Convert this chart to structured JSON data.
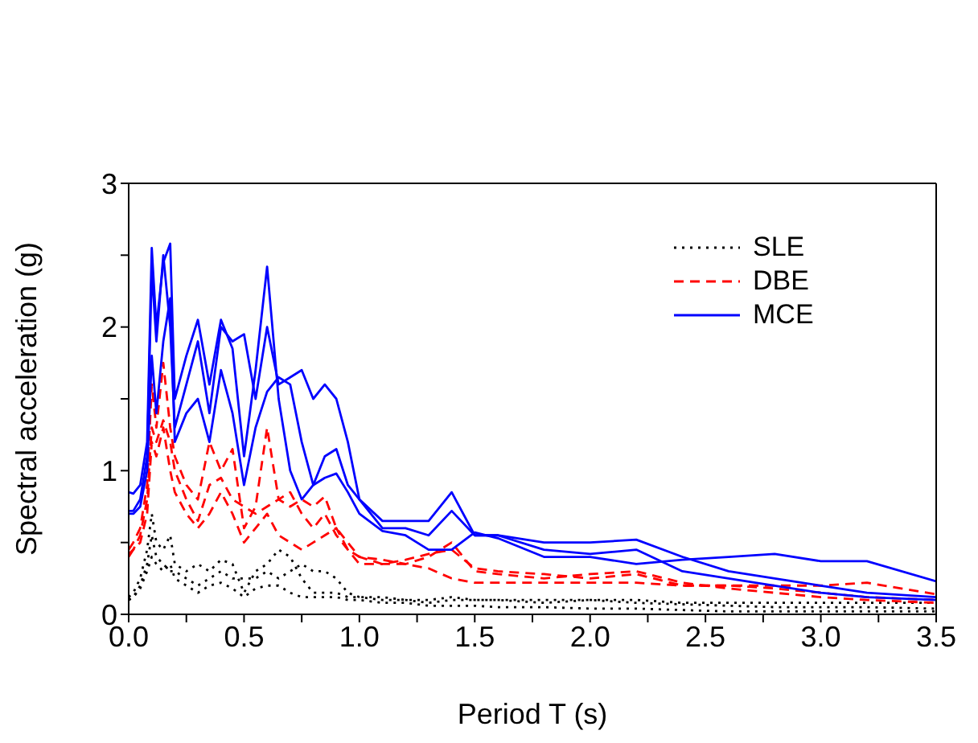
{
  "chart_data": {
    "type": "line",
    "xlabel": "Period T (s)",
    "ylabel": "Spectral acceleration (g)",
    "x": [
      0,
      0.02,
      0.05,
      0.08,
      0.1,
      0.12,
      0.15,
      0.18,
      0.2,
      0.25,
      0.3,
      0.35,
      0.4,
      0.45,
      0.5,
      0.55,
      0.6,
      0.65,
      0.7,
      0.75,
      0.8,
      0.85,
      0.9,
      0.95,
      1.0,
      1.1,
      1.2,
      1.3,
      1.4,
      1.5,
      1.6,
      1.8,
      2.0,
      2.2,
      2.4,
      2.6,
      2.8,
      3.0,
      3.2,
      3.5
    ],
    "series": [
      {
        "name": "SLE",
        "color": "#000000",
        "line_style": "dotted",
        "values": [
          0.12,
          0.15,
          0.25,
          0.45,
          0.7,
          0.5,
          0.45,
          0.55,
          0.35,
          0.3,
          0.35,
          0.3,
          0.38,
          0.35,
          0.15,
          0.3,
          0.35,
          0.45,
          0.4,
          0.25,
          0.15,
          0.15,
          0.15,
          0.12,
          0.12,
          0.12,
          0.1,
          0.1,
          0.12,
          0.1,
          0.1,
          0.1,
          0.1,
          0.08,
          0.07,
          0.06,
          0.05,
          0.05,
          0.05,
          0.04
        ]
      },
      {
        "color": "#000000",
        "line_style": "dotted",
        "values": [
          0.1,
          0.12,
          0.2,
          0.35,
          0.55,
          0.4,
          0.35,
          0.3,
          0.3,
          0.25,
          0.2,
          0.25,
          0.3,
          0.25,
          0.25,
          0.25,
          0.3,
          0.25,
          0.3,
          0.35,
          0.3,
          0.3,
          0.25,
          0.15,
          0.12,
          0.1,
          0.1,
          0.08,
          0.1,
          0.1,
          0.1,
          0.08,
          0.1,
          0.1,
          0.08,
          0.08,
          0.08,
          0.08,
          0.08,
          0.08
        ]
      },
      {
        "color": "#000000",
        "line_style": "dotted",
        "values": [
          0.1,
          0.12,
          0.18,
          0.3,
          0.4,
          0.35,
          0.3,
          0.35,
          0.25,
          0.2,
          0.15,
          0.2,
          0.22,
          0.18,
          0.12,
          0.18,
          0.2,
          0.2,
          0.15,
          0.12,
          0.12,
          0.12,
          0.12,
          0.1,
          0.1,
          0.08,
          0.08,
          0.06,
          0.06,
          0.06,
          0.05,
          0.05,
          0.04,
          0.04,
          0.03,
          0.02,
          0.02,
          0.02,
          0.02,
          0.02
        ]
      },
      {
        "name": "DBE",
        "color": "#ff0000",
        "line_style": "dashed",
        "values": [
          0.45,
          0.5,
          0.6,
          0.9,
          1.6,
          1.3,
          1.75,
          1.3,
          1.1,
          0.9,
          0.8,
          1.2,
          1.0,
          1.15,
          0.6,
          0.75,
          1.3,
          0.8,
          0.75,
          0.8,
          0.75,
          0.82,
          0.6,
          0.5,
          0.4,
          0.35,
          0.38,
          0.42,
          0.45,
          0.32,
          0.3,
          0.28,
          0.25,
          0.28,
          0.2,
          0.2,
          0.2,
          0.2,
          0.22,
          0.14
        ]
      },
      {
        "color": "#ff0000",
        "line_style": "dashed",
        "values": [
          0.42,
          0.45,
          0.55,
          0.8,
          1.3,
          1.2,
          1.35,
          1.2,
          1.0,
          0.8,
          0.65,
          0.9,
          0.95,
          0.8,
          0.75,
          0.7,
          0.75,
          0.8,
          0.85,
          0.7,
          0.6,
          0.7,
          0.55,
          0.45,
          0.35,
          0.35,
          0.35,
          0.32,
          0.25,
          0.22,
          0.22,
          0.22,
          0.22,
          0.22,
          0.2,
          0.2,
          0.18,
          0.15,
          0.12,
          0.1
        ]
      },
      {
        "color": "#ff0000",
        "line_style": "dashed",
        "values": [
          0.4,
          0.45,
          0.5,
          0.7,
          1.2,
          1.1,
          1.3,
          1.0,
          0.85,
          0.7,
          0.6,
          0.7,
          0.85,
          0.7,
          0.5,
          0.6,
          0.7,
          0.55,
          0.5,
          0.45,
          0.5,
          0.55,
          0.6,
          0.45,
          0.4,
          0.38,
          0.35,
          0.4,
          0.5,
          0.3,
          0.28,
          0.25,
          0.28,
          0.3,
          0.22,
          0.18,
          0.15,
          0.12,
          0.1,
          0.08
        ]
      },
      {
        "name": "MCE",
        "color": "#0000ff",
        "line_style": "solid",
        "values": [
          0.85,
          0.84,
          0.9,
          1.2,
          2.55,
          2.0,
          2.45,
          2.58,
          1.5,
          1.8,
          2.05,
          1.6,
          2.05,
          1.85,
          1.1,
          1.7,
          2.42,
          1.5,
          1.0,
          0.8,
          0.9,
          1.1,
          1.15,
          0.9,
          0.8,
          0.6,
          0.6,
          0.55,
          0.72,
          0.55,
          0.55,
          0.45,
          0.42,
          0.45,
          0.3,
          0.25,
          0.2,
          0.15,
          0.12,
          0.1
        ]
      },
      {
        "color": "#0000ff",
        "line_style": "solid",
        "values": [
          0.72,
          0.72,
          0.8,
          1.1,
          2.4,
          1.9,
          2.5,
          2.0,
          1.3,
          1.6,
          1.9,
          1.4,
          2.0,
          1.9,
          1.95,
          1.5,
          2.0,
          1.6,
          1.65,
          1.7,
          1.5,
          1.6,
          1.5,
          1.2,
          0.8,
          0.65,
          0.65,
          0.65,
          0.85,
          0.55,
          0.55,
          0.5,
          0.5,
          0.52,
          0.4,
          0.3,
          0.25,
          0.2,
          0.15,
          0.12
        ]
      },
      {
        "color": "#0000ff",
        "line_style": "solid",
        "values": [
          0.7,
          0.7,
          0.75,
          1.0,
          1.8,
          1.4,
          1.9,
          2.2,
          1.2,
          1.4,
          1.5,
          1.2,
          1.7,
          1.4,
          0.9,
          1.3,
          1.55,
          1.65,
          1.6,
          1.2,
          0.9,
          0.95,
          0.98,
          0.85,
          0.7,
          0.58,
          0.55,
          0.45,
          0.45,
          0.57,
          0.53,
          0.4,
          0.4,
          0.35,
          0.38,
          0.4,
          0.42,
          0.37,
          0.37,
          0.23
        ]
      }
    ],
    "xlim": [
      0,
      3.5
    ],
    "xticks": [
      {
        "value": 0,
        "label": "0.0"
      },
      {
        "value": 0.25,
        "label": null
      },
      {
        "value": 0.5,
        "label": "0.5"
      },
      {
        "value": 0.75,
        "label": null
      },
      {
        "value": 1,
        "label": "1.0"
      },
      {
        "value": 1.25,
        "label": null
      },
      {
        "value": 1.5,
        "label": "1.5"
      },
      {
        "value": 1.75,
        "label": null
      },
      {
        "value": 2,
        "label": "2.0"
      },
      {
        "value": 2.25,
        "label": null
      },
      {
        "value": 2.5,
        "label": "2.5"
      },
      {
        "value": 2.75,
        "label": null
      },
      {
        "value": 3,
        "label": "3.0"
      },
      {
        "value": 3.25,
        "label": null
      },
      {
        "value": 3.5,
        "label": "3.5"
      }
    ],
    "ylim": [
      0,
      3
    ],
    "yticks": [
      0,
      {
        "value": 0.5,
        "label": null
      },
      1,
      {
        "value": 1.5,
        "label": null
      },
      2,
      {
        "value": 2.5,
        "label": null
      },
      3
    ],
    "legend": "top right",
    "marker": "none",
    "grid": false
  }
}
